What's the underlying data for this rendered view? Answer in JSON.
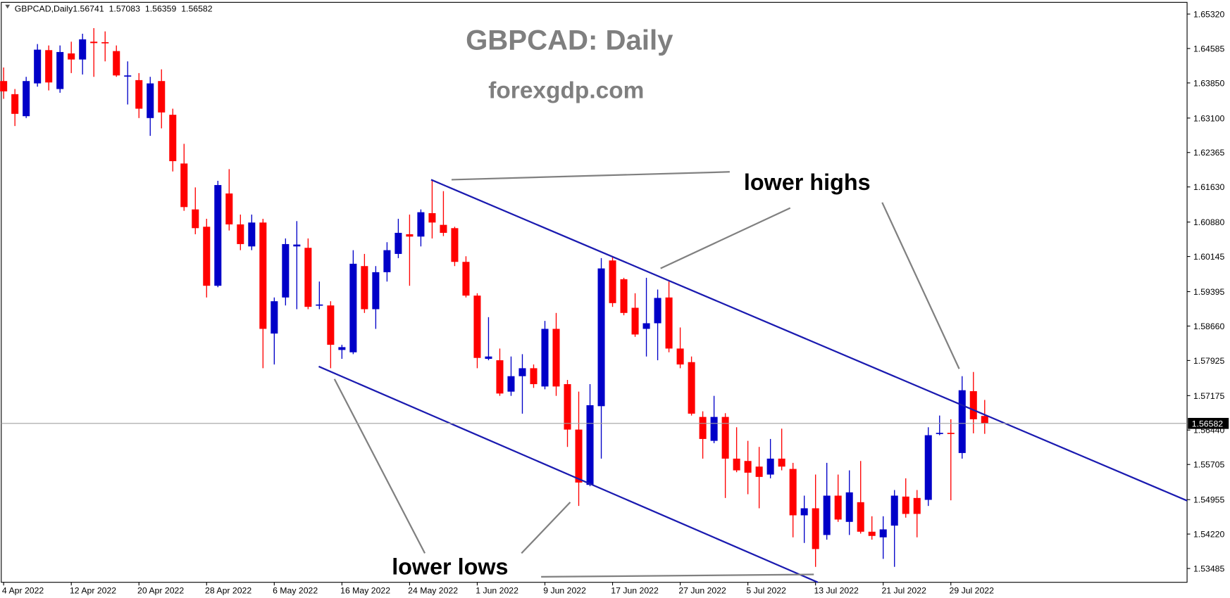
{
  "chart_data": {
    "type": "candlestick",
    "symbol": "GBPCAD,Daily",
    "title": "GBPCAD: Daily",
    "subtitle": "forexgdp.com",
    "annotations": [
      "lower highs",
      "lower lows"
    ],
    "up_color": "#0000c8",
    "down_color": "#ff0000",
    "categories": [
      "4 Apr 2022",
      null,
      null,
      null,
      null,
      null,
      "12 Apr 2022",
      null,
      null,
      null,
      null,
      null,
      "20 Apr 2022",
      null,
      null,
      null,
      null,
      null,
      "28 Apr 2022",
      null,
      null,
      null,
      null,
      null,
      "6 May 2022",
      null,
      null,
      null,
      null,
      null,
      "16 May 2022",
      null,
      null,
      null,
      null,
      null,
      "24 May 2022",
      null,
      null,
      null,
      null,
      null,
      "1 Jun 2022",
      null,
      null,
      null,
      null,
      null,
      "9 Jun 2022",
      null,
      null,
      null,
      null,
      null,
      "17 Jun 2022",
      null,
      null,
      null,
      null,
      null,
      "27 Jun 2022",
      null,
      null,
      null,
      null,
      null,
      "5 Jul 2022",
      null,
      null,
      null,
      null,
      null,
      "13 Jul 2022",
      null,
      null,
      null,
      null,
      null,
      "21 Jul 2022",
      null,
      null,
      null,
      null,
      null,
      "29 Jul 2022",
      null,
      null,
      null
    ],
    "open": [
      1.6389,
      1.6361,
      1.6314,
      1.6384,
      1.6455,
      1.6372,
      1.6448,
      1.6435,
      1.6473,
      1.6472,
      1.6453,
      1.64,
      1.6391,
      1.631,
      1.6389,
      1.6317,
      1.6213,
      1.6115,
      1.6078,
      1.5952,
      1.6149,
      1.6083,
      1.6036,
      1.6087,
      1.585,
      1.5927,
      1.6036,
      1.6033,
      1.591,
      1.591,
      1.5815,
      1.581,
      1.5994,
      1.5902,
      1.5981,
      1.602,
      1.6062,
      1.6057,
      1.6107,
      1.6082,
      1.6075,
      1.6003,
      1.5931,
      1.5796,
      1.5793,
      1.5726,
      1.5759,
      1.5776,
      1.5737,
      1.586,
      1.5742,
      1.5645,
      1.5527,
      1.5695,
      1.6006,
      1.5966,
      1.5905,
      1.586,
      1.5872,
      1.5927,
      1.5818,
      1.5789,
      1.5672,
      1.5621,
      1.5672,
      1.5583,
      1.5578,
      1.5566,
      1.5549,
      1.5583,
      1.5561,
      1.5462,
      1.5477,
      1.542,
      1.5504,
      1.5448,
      1.549,
      1.5427,
      1.5415,
      1.544,
      1.5502,
      1.5499,
      1.5495,
      1.5637,
      1.5638,
      1.5595,
      1.5727,
      1.56741
    ],
    "high": [
      1.6418,
      1.6372,
      1.6398,
      1.6468,
      1.6465,
      1.6465,
      1.6473,
      1.649,
      1.6502,
      1.6495,
      1.6465,
      1.6431,
      1.6406,
      1.6398,
      1.6414,
      1.633,
      1.6255,
      1.6162,
      1.6095,
      1.6176,
      1.6201,
      1.6104,
      1.6104,
      1.6095,
      1.5927,
      1.6053,
      1.609,
      1.6053,
      1.5961,
      1.5919,
      1.5826,
      1.6028,
      1.602,
      1.5994,
      1.6045,
      1.6095,
      1.6104,
      1.6115,
      1.6179,
      1.6154,
      1.6078,
      1.6015,
      1.5936,
      1.5885,
      1.5818,
      1.5801,
      1.5806,
      1.5784,
      1.5877,
      1.5894,
      1.5751,
      1.5726,
      1.5742,
      1.6011,
      1.6015,
      1.5969,
      1.5936,
      1.5969,
      1.5944,
      1.5961,
      1.5863,
      1.5801,
      1.5684,
      1.5717,
      1.568,
      1.565,
      1.5621,
      1.5608,
      1.5625,
      1.5647,
      1.5574,
      1.5504,
      1.5549,
      1.5574,
      1.5549,
      1.5558,
      1.5578,
      1.546,
      1.546,
      1.5516,
      1.5541,
      1.5516,
      1.565,
      1.5675,
      1.5667,
      1.5759,
      1.5768,
      1.57083
    ],
    "low": [
      1.6351,
      1.6293,
      1.631,
      1.6377,
      1.6369,
      1.6364,
      1.6406,
      1.6403,
      1.6398,
      1.6431,
      1.6398,
      1.6339,
      1.631,
      1.6272,
      1.6288,
      1.6196,
      1.6112,
      1.6062,
      1.5927,
      1.5949,
      1.607,
      1.6028,
      1.6028,
      1.5776,
      1.5784,
      1.591,
      1.5902,
      1.5902,
      1.5902,
      1.5776,
      1.5796,
      1.5806,
      1.5894,
      1.586,
      1.5961,
      1.6011,
      1.5952,
      1.6036,
      1.6053,
      1.6058,
      1.5994,
      1.5927,
      1.5776,
      1.5793,
      1.5717,
      1.5717,
      1.5679,
      1.5734,
      1.5731,
      1.5717,
      1.5608,
      1.5482,
      1.5524,
      1.5583,
      1.5907,
      1.5889,
      1.5843,
      1.5801,
      1.5793,
      1.581,
      1.5776,
      1.5675,
      1.5583,
      1.5616,
      1.5499,
      1.5554,
      1.5507,
      1.5477,
      1.5541,
      1.5558,
      1.5415,
      1.5403,
      1.5352,
      1.541,
      1.5448,
      1.542,
      1.5423,
      1.541,
      1.5369,
      1.5352,
      1.5457,
      1.5415,
      1.5482,
      1.5633,
      1.5494,
      1.5583,
      1.5637,
      1.56359
    ],
    "close": [
      1.6367,
      1.6319,
      1.6389,
      1.6456,
      1.6386,
      1.6451,
      1.6435,
      1.6478,
      1.647,
      1.647,
      1.6401,
      1.6401,
      1.633,
      1.6384,
      1.6322,
      1.6218,
      1.612,
      1.6075,
      1.5952,
      1.6167,
      1.6083,
      1.6041,
      1.6087,
      1.586,
      1.5919,
      1.6041,
      1.604,
      1.5907,
      1.5912,
      1.5826,
      1.5821,
      1.5999,
      1.5902,
      1.5981,
      1.6028,
      1.6065,
      1.6057,
      1.6109,
      1.6087,
      1.6065,
      1.6003,
      1.5931,
      1.5798,
      1.5801,
      1.5722,
      1.5759,
      1.5776,
      1.5742,
      1.586,
      1.5737,
      1.5645,
      1.5532,
      1.5697,
      1.5989,
      1.5915,
      1.5894,
      1.5848,
      1.5872,
      1.5926,
      1.5818,
      1.5784,
      1.5679,
      1.5625,
      1.5672,
      1.5583,
      1.5558,
      1.5553,
      1.5544,
      1.5583,
      1.5566,
      1.5462,
      1.5477,
      1.539,
      1.5504,
      1.5453,
      1.5511,
      1.5427,
      1.5418,
      1.5432,
      1.5504,
      1.5465,
      1.5465,
      1.5633,
      1.5638,
      1.5637,
      1.5729,
      1.5667,
      1.56582
    ],
    "ylim": [
      1.5319,
      1.6557
    ],
    "yticks": [
      {
        "value": 1.6532,
        "label": "1.65320"
      },
      1.64585,
      {
        "value": 1.6385,
        "label": "1.63850"
      },
      {
        "value": 1.631,
        "label": "1.63100"
      },
      1.62365,
      {
        "value": 1.6163,
        "label": "1.61630"
      },
      {
        "value": 1.6088,
        "label": "1.60880"
      },
      1.60145,
      1.59395,
      {
        "value": 1.5866,
        "label": "1.58660"
      },
      1.57925,
      1.57175,
      {
        "value": 1.5644,
        "label": "1.56440"
      },
      1.55705,
      1.54955,
      {
        "value": 1.5422,
        "label": "1.54220"
      },
      1.53485
    ]
  }
}
